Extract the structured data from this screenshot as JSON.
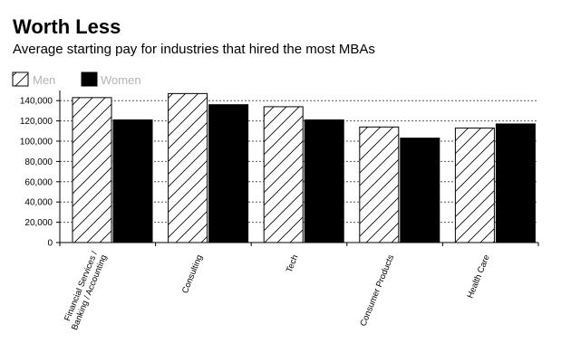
{
  "chart_data": {
    "type": "bar",
    "title": "Worth Less",
    "subtitle": "Average starting pay for industries that hired the most MBAs",
    "xlabel": "",
    "ylabel": "",
    "ylim": [
      0,
      150000
    ],
    "yticks": [
      0,
      20000,
      40000,
      60000,
      80000,
      100000,
      120000,
      140000
    ],
    "ytick_labels": [
      "0",
      "20,000",
      "40,000",
      "60,000",
      "80,000",
      "100,000",
      "120,000",
      "140,000"
    ],
    "grid": true,
    "legend_position": "top-left",
    "categories": [
      "Financial Services / Banking / Accounting",
      "Consulting",
      "Tech",
      "Consumer Products",
      "Health Care"
    ],
    "category_lines": [
      [
        "Financial Services /",
        "Banking / Accounting"
      ],
      [
        "Consulting"
      ],
      [
        "Tech"
      ],
      [
        "Consumer Products"
      ],
      [
        "Health Care"
      ]
    ],
    "series": [
      {
        "name": "Men",
        "values": [
          143000,
          147000,
          134000,
          114000,
          113000
        ],
        "fill": "hatched",
        "color": "#000000"
      },
      {
        "name": "Women",
        "values": [
          121000,
          136000,
          121000,
          103000,
          117000
        ],
        "fill": "solid",
        "color": "#000000"
      }
    ],
    "colors": {
      "grid": "#555555",
      "legend_text": "#b3b3b3"
    }
  }
}
